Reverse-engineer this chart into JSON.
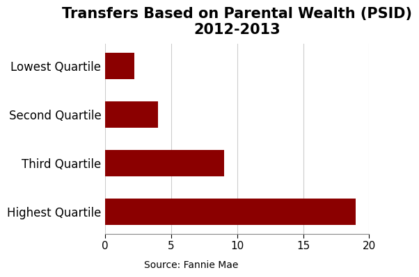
{
  "title": "Transfers Based on Parental Wealth (PSID)\n2012-2013",
  "categories": [
    "Lowest Quartile",
    "Second Quartile",
    "Third Quartile",
    "Highest Quartile"
  ],
  "values": [
    2.2,
    4,
    9,
    19
  ],
  "bar_color": "#8B0000",
  "xlim": [
    0,
    20
  ],
  "xticks": [
    0,
    5,
    10,
    15,
    20
  ],
  "source_label": "Source: Fannie Mae",
  "title_fontsize": 15,
  "label_fontsize": 12,
  "tick_fontsize": 11,
  "source_fontsize": 10,
  "background_color": "#ffffff"
}
